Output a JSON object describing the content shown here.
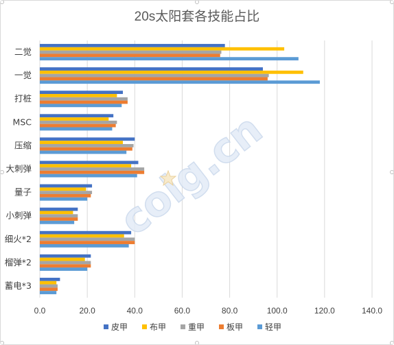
{
  "chart_data": {
    "type": "bar",
    "orientation": "horizontal",
    "title": "20s太阳套各技能占比",
    "categories": [
      "二觉",
      "一觉",
      "打桩",
      "MSC",
      "压缩",
      "大刺弹",
      "量子",
      "小刺弹",
      "细火*2",
      "榴弹*2",
      "蓄电*3"
    ],
    "series": [
      {
        "name": "皮甲",
        "color": "#4472c4",
        "values": [
          78,
          94,
          35,
          31,
          40,
          41.5,
          22,
          16,
          38.5,
          21.5,
          8.5
        ]
      },
      {
        "name": "布甲",
        "color": "#ffc000",
        "values": [
          103,
          111,
          32.5,
          29,
          35,
          38.5,
          19.5,
          14,
          35.5,
          19,
          7
        ]
      },
      {
        "name": "重甲",
        "color": "#a5a5a5",
        "values": [
          76.5,
          96.5,
          37,
          32.5,
          39.5,
          44,
          22,
          16,
          40,
          21.5,
          7.5
        ]
      },
      {
        "name": "板甲",
        "color": "#ed7d31",
        "values": [
          76,
          96,
          37,
          32,
          39,
          44,
          21.5,
          16,
          40,
          21.5,
          7.5
        ]
      },
      {
        "name": "轻甲",
        "color": "#5b9bd5",
        "values": [
          109,
          118,
          34.5,
          30.5,
          36.5,
          41,
          20,
          14.5,
          37.5,
          20,
          7
        ]
      }
    ],
    "xlim": [
      0,
      140
    ],
    "xticks": [
      "0.0",
      "20.0",
      "40.0",
      "60.0",
      "80.0",
      "100.0",
      "120.0",
      "140.0"
    ],
    "grid": "vertical",
    "legend": "bottom",
    "xlabel": "",
    "ylabel": ""
  },
  "watermark": {
    "text": "colg.cn"
  }
}
